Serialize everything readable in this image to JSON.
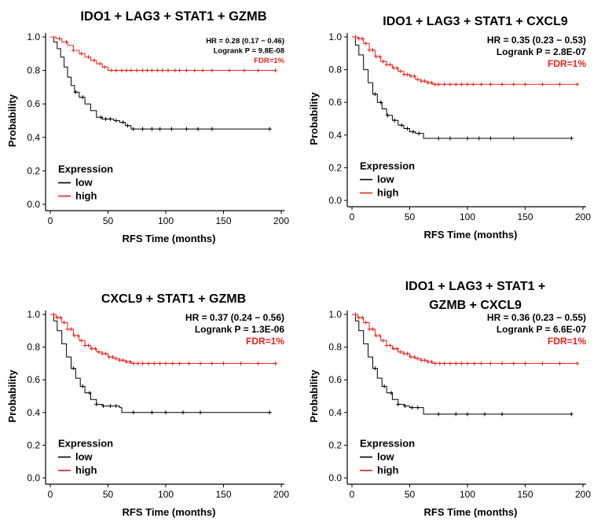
{
  "figure": {
    "colors": {
      "low": "#000000",
      "high": "#e8211b"
    }
  },
  "chart_data": [
    {
      "type": "line",
      "title": [
        "IDO1 + LAG3 + STAT1 + GZMB"
      ],
      "xlabel": "RFS Time (months)",
      "ylabel": "Probability",
      "xlim": [
        0,
        200
      ],
      "ylim": [
        0,
        1
      ],
      "xticks": [
        0,
        50,
        100,
        150,
        200
      ],
      "yticks": [
        "0.0",
        "0.2",
        "0.4",
        "0.6",
        "0.8",
        "1.0"
      ],
      "annotations": {
        "hr": "HR = 0.28 (0.17 − 0.46)",
        "logrank": "Logrank P = 9.8E-08",
        "fdr": "FDR=1%"
      },
      "legend": {
        "title": "Expression",
        "items": [
          "low",
          "high"
        ]
      },
      "series": [
        {
          "name": "low",
          "color": "#000000",
          "x": [
            0,
            3,
            6,
            9,
            12,
            15,
            18,
            21,
            25,
            30,
            35,
            40,
            45,
            50,
            55,
            60,
            65,
            70,
            75,
            100,
            150,
            190
          ],
          "y": [
            1.0,
            0.97,
            0.93,
            0.88,
            0.82,
            0.76,
            0.71,
            0.67,
            0.64,
            0.6,
            0.56,
            0.52,
            0.51,
            0.51,
            0.5,
            0.49,
            0.47,
            0.45,
            0.45,
            0.45,
            0.45,
            0.45
          ],
          "censor": [
            22,
            28,
            44,
            48,
            52,
            57,
            63,
            67,
            72,
            80,
            88,
            95,
            105,
            118,
            128,
            140,
            190
          ]
        },
        {
          "name": "high",
          "color": "#e8211b",
          "x": [
            0,
            5,
            10,
            15,
            20,
            25,
            30,
            35,
            40,
            45,
            50,
            55,
            60,
            195
          ],
          "y": [
            1.0,
            0.99,
            0.97,
            0.95,
            0.92,
            0.9,
            0.88,
            0.86,
            0.84,
            0.82,
            0.8,
            0.8,
            0.8,
            0.8
          ],
          "censor": [
            8,
            14,
            20,
            27,
            33,
            38,
            43,
            47,
            53,
            57,
            62,
            66,
            70,
            75,
            80,
            84,
            88,
            93,
            97,
            102,
            108,
            112,
            118,
            125,
            132,
            140,
            155,
            168,
            180,
            195
          ]
        }
      ]
    },
    {
      "type": "line",
      "title": [
        "IDO1 + LAG3 + STAT1 + CXCL9"
      ],
      "xlabel": "RFS Time (months)",
      "ylabel": "Probability",
      "xlim": [
        0,
        200
      ],
      "ylim": [
        0,
        1
      ],
      "xticks": [
        0,
        50,
        100,
        150,
        200
      ],
      "yticks": [
        "0.0",
        "0.2",
        "0.4",
        "0.6",
        "0.8",
        "1.0"
      ],
      "annotations": {
        "hr": "HR = 0.35 (0.23 − 0.53)",
        "logrank": "Logrank P = 2.8E-07",
        "fdr": "FDR=1%"
      },
      "legend": {
        "title": "Expression",
        "items": [
          "low",
          "high"
        ]
      },
      "series": [
        {
          "name": "low",
          "color": "#000000",
          "x": [
            0,
            3,
            6,
            10,
            14,
            18,
            22,
            26,
            30,
            35,
            40,
            45,
            50,
            55,
            60,
            62,
            190
          ],
          "y": [
            1.0,
            0.95,
            0.89,
            0.8,
            0.72,
            0.65,
            0.6,
            0.56,
            0.52,
            0.49,
            0.46,
            0.44,
            0.42,
            0.41,
            0.41,
            0.38,
            0.38
          ],
          "censor": [
            20,
            25,
            31,
            37,
            43,
            48,
            53,
            58,
            75,
            85,
            100,
            110,
            120,
            140,
            190
          ]
        },
        {
          "name": "high",
          "color": "#e8211b",
          "x": [
            0,
            5,
            10,
            15,
            20,
            25,
            30,
            35,
            40,
            45,
            50,
            55,
            60,
            65,
            70,
            75,
            195
          ],
          "y": [
            1.0,
            0.99,
            0.96,
            0.92,
            0.88,
            0.85,
            0.83,
            0.81,
            0.79,
            0.77,
            0.76,
            0.74,
            0.73,
            0.72,
            0.71,
            0.71,
            0.71
          ],
          "censor": [
            3,
            6,
            9,
            12,
            15,
            18,
            21,
            24,
            27,
            30,
            33,
            36,
            39,
            42,
            45,
            48,
            51,
            54,
            57,
            60,
            63,
            66,
            69,
            72,
            75,
            80,
            85,
            90,
            95,
            100,
            105,
            112,
            120,
            130,
            140,
            150,
            165,
            180,
            195
          ]
        }
      ]
    },
    {
      "type": "line",
      "title": [
        "CXCL9 + STAT1 + GZMB"
      ],
      "xlabel": "RFS Time (months)",
      "ylabel": "Probability",
      "xlim": [
        0,
        200
      ],
      "ylim": [
        0,
        1
      ],
      "xticks": [
        0,
        50,
        100,
        150,
        200
      ],
      "yticks": [
        "0.0",
        "0.2",
        "0.4",
        "0.6",
        "0.8",
        "1.0"
      ],
      "annotations": {
        "hr": "HR = 0.37 (0.24 − 0.56)",
        "logrank": "Logrank P = 1.3E-06",
        "fdr": "FDR=1%"
      },
      "legend": {
        "title": "Expression",
        "items": [
          "low",
          "high"
        ]
      },
      "series": [
        {
          "name": "low",
          "color": "#000000",
          "x": [
            0,
            3,
            6,
            10,
            14,
            18,
            22,
            26,
            30,
            35,
            40,
            45,
            50,
            55,
            60,
            62,
            190
          ],
          "y": [
            1.0,
            0.96,
            0.9,
            0.82,
            0.74,
            0.67,
            0.61,
            0.56,
            0.52,
            0.48,
            0.45,
            0.44,
            0.44,
            0.44,
            0.43,
            0.4,
            0.4
          ],
          "censor": [
            20,
            28,
            34,
            40,
            46,
            52,
            57,
            72,
            88,
            100,
            115,
            130,
            190
          ]
        },
        {
          "name": "high",
          "color": "#e8211b",
          "x": [
            0,
            5,
            10,
            15,
            20,
            25,
            30,
            35,
            40,
            45,
            50,
            55,
            60,
            65,
            70,
            195
          ],
          "y": [
            1.0,
            0.98,
            0.95,
            0.91,
            0.87,
            0.84,
            0.81,
            0.79,
            0.77,
            0.76,
            0.74,
            0.73,
            0.72,
            0.71,
            0.7,
            0.7
          ],
          "censor": [
            3,
            6,
            9,
            12,
            15,
            18,
            21,
            24,
            27,
            30,
            33,
            36,
            39,
            42,
            45,
            48,
            51,
            54,
            57,
            60,
            63,
            66,
            69,
            72,
            76,
            80,
            85,
            90,
            95,
            100,
            106,
            112,
            120,
            130,
            140,
            150,
            165,
            180,
            195
          ]
        }
      ]
    },
    {
      "type": "line",
      "title": [
        "IDO1 + LAG3 + STAT1 +",
        "GZMB + CXCL9"
      ],
      "xlabel": "RFS Time (months)",
      "ylabel": "Probability",
      "xlim": [
        0,
        200
      ],
      "ylim": [
        0,
        1
      ],
      "xticks": [
        0,
        50,
        100,
        150,
        200
      ],
      "yticks": [
        "0.0",
        "0.2",
        "0.4",
        "0.6",
        "0.8",
        "1.0"
      ],
      "annotations": {
        "hr": "HR = 0.36 (0.23 − 0.55)",
        "logrank": "Logrank P = 6.6E-07",
        "fdr": "FDR=1%"
      },
      "legend": {
        "title": "Expression",
        "items": [
          "low",
          "high"
        ]
      },
      "series": [
        {
          "name": "low",
          "color": "#000000",
          "x": [
            0,
            3,
            6,
            10,
            14,
            18,
            22,
            26,
            30,
            35,
            40,
            45,
            50,
            55,
            60,
            62,
            190
          ],
          "y": [
            1.0,
            0.96,
            0.9,
            0.82,
            0.74,
            0.67,
            0.61,
            0.56,
            0.52,
            0.48,
            0.45,
            0.44,
            0.43,
            0.43,
            0.43,
            0.39,
            0.39
          ],
          "censor": [
            20,
            28,
            34,
            40,
            46,
            52,
            57,
            75,
            90,
            100,
            115,
            130,
            190
          ]
        },
        {
          "name": "high",
          "color": "#e8211b",
          "x": [
            0,
            5,
            10,
            15,
            20,
            25,
            30,
            35,
            40,
            45,
            50,
            55,
            60,
            65,
            70,
            75,
            195
          ],
          "y": [
            1.0,
            0.98,
            0.95,
            0.91,
            0.87,
            0.84,
            0.81,
            0.79,
            0.77,
            0.76,
            0.74,
            0.73,
            0.72,
            0.71,
            0.7,
            0.7,
            0.7
          ],
          "censor": [
            3,
            6,
            9,
            12,
            15,
            18,
            21,
            24,
            27,
            30,
            33,
            36,
            39,
            42,
            45,
            48,
            51,
            54,
            57,
            60,
            63,
            66,
            69,
            72,
            76,
            80,
            85,
            90,
            95,
            100,
            106,
            112,
            120,
            130,
            140,
            150,
            165,
            180,
            195
          ]
        }
      ]
    }
  ]
}
